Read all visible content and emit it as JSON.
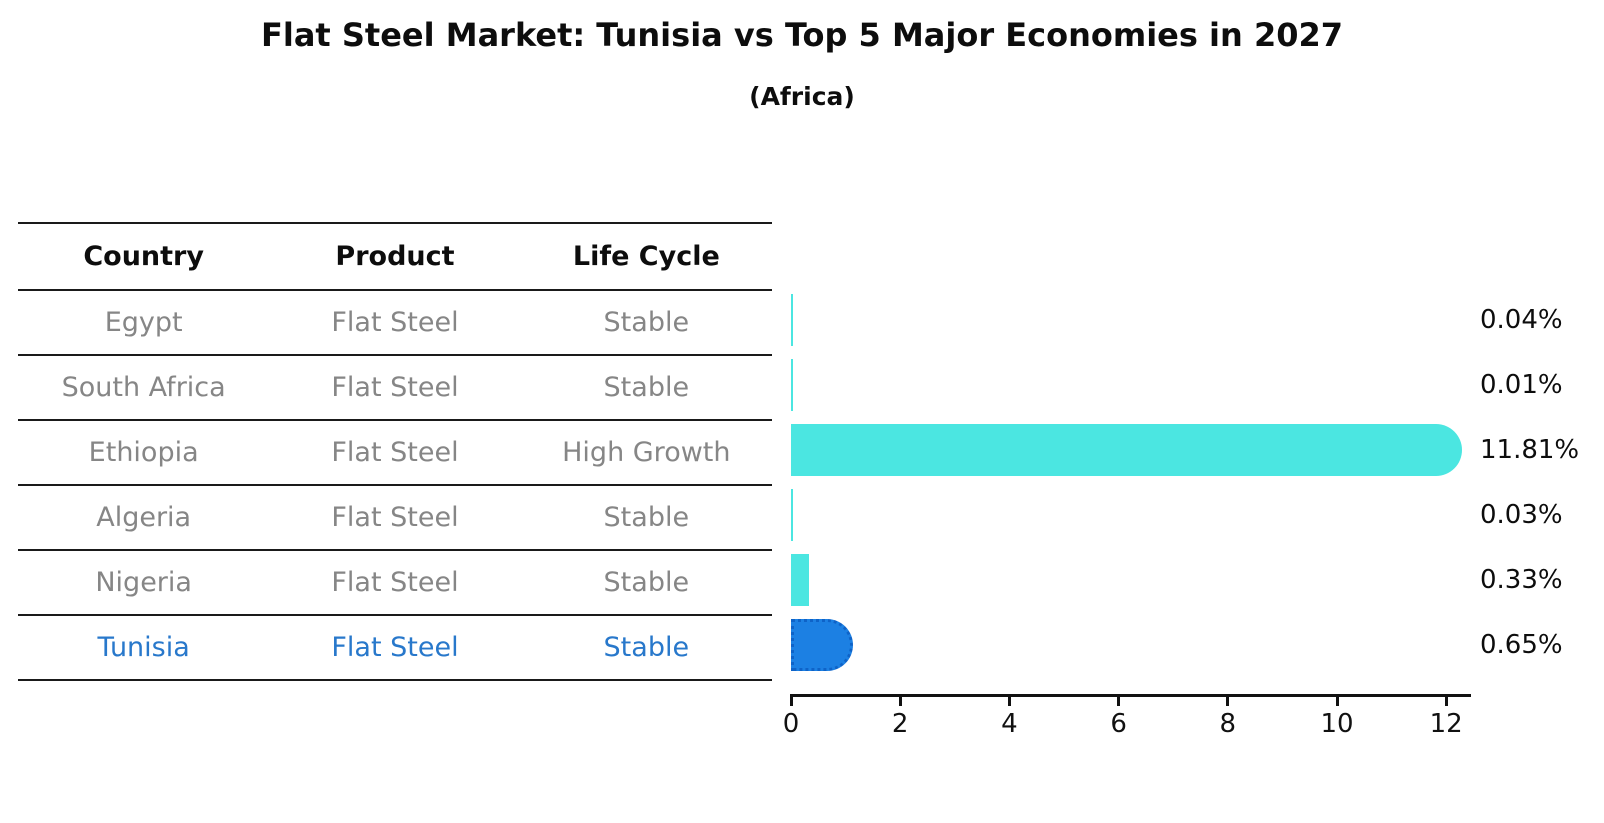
{
  "title": "Flat Steel Market: Tunisia vs Top 5 Major Economies in 2027",
  "subtitle": "(Africa)",
  "table": {
    "headers": [
      "Country",
      "Product",
      "Life Cycle"
    ],
    "rows": [
      {
        "country": "Egypt",
        "product": "Flat Steel",
        "life_cycle": "Stable",
        "highlight": false
      },
      {
        "country": "South Africa",
        "product": "Flat Steel",
        "life_cycle": "Stable",
        "highlight": false
      },
      {
        "country": "Ethiopia",
        "product": "Flat Steel",
        "life_cycle": "High Growth",
        "highlight": false
      },
      {
        "country": "Algeria",
        "product": "Flat Steel",
        "life_cycle": "Stable",
        "highlight": false
      },
      {
        "country": "Nigeria",
        "product": "Flat Steel",
        "life_cycle": "Stable",
        "highlight": false
      },
      {
        "country": "Tunisia",
        "product": "Flat Steel",
        "life_cycle": "Stable",
        "highlight": true
      }
    ]
  },
  "chart_data": {
    "type": "bar",
    "orientation": "horizontal",
    "title": "Flat Steel Market: Tunisia vs Top 5 Major Economies in 2027",
    "subtitle": "(Africa)",
    "categories": [
      "Egypt",
      "South Africa",
      "Ethiopia",
      "Algeria",
      "Nigeria",
      "Tunisia"
    ],
    "values": [
      0.04,
      0.01,
      11.81,
      0.03,
      0.33,
      0.65
    ],
    "value_labels": [
      "0.04%",
      "0.01%",
      "11.81%",
      "0.03%",
      "0.33%",
      "0.65%"
    ],
    "highlight_index": 5,
    "xlabel": "",
    "ylabel": "",
    "xlim": [
      0,
      12.5
    ],
    "x_ticks": [
      0,
      2,
      4,
      6,
      8,
      10,
      12
    ],
    "x_tick_labels": [
      "0",
      "2",
      "4",
      "6",
      "8",
      "10",
      "12"
    ],
    "grid": false,
    "legend": false,
    "colors": {
      "bar_default": "#4BE6E1",
      "bar_highlight": "#1C80E3",
      "bar_highlight_border": "#0E63C8",
      "highlight_text": "#2878CB",
      "row_text": "#868686",
      "label_text": "#0d0d0d"
    }
  }
}
